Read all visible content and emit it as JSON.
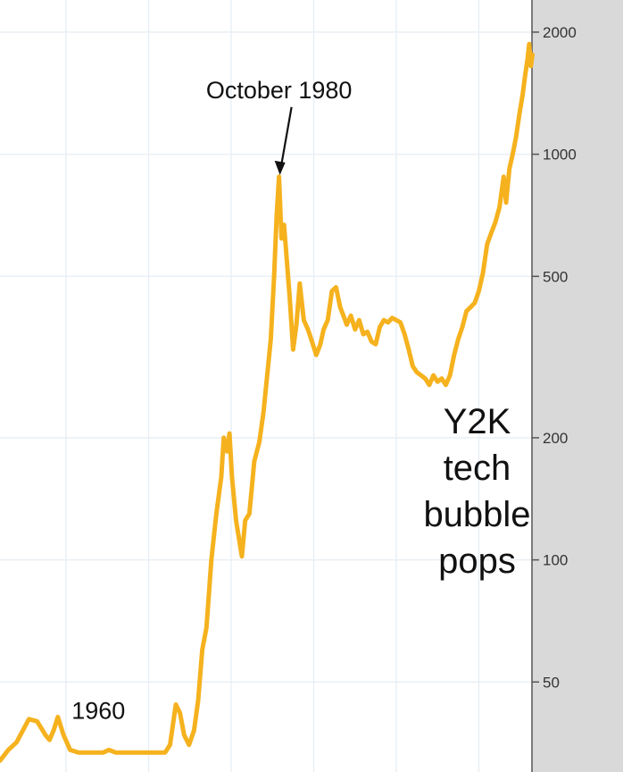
{
  "chart_data": {
    "type": "line",
    "title": "",
    "xlabel": "",
    "ylabel": "",
    "y_scale": "log",
    "ylim": [
      30,
      2400
    ],
    "xlim": [
      1947,
      2011
    ],
    "grid": true,
    "yticks": [
      {
        "value": 50,
        "label": "50"
      },
      {
        "value": 100,
        "label": "100"
      },
      {
        "value": 200,
        "label": "200"
      },
      {
        "value": 500,
        "label": "500"
      },
      {
        "value": 1000,
        "label": "1000"
      },
      {
        "value": 2000,
        "label": "2000"
      }
    ],
    "colors": {
      "line": "#f5b21e",
      "grid": "#e6eef4",
      "panel": "#d9d9d9",
      "axis": "#555555"
    },
    "annotations": [
      {
        "id": "oct1980",
        "text": "October 1980",
        "x": 1980.8,
        "y": 880,
        "style": "arrow"
      },
      {
        "id": "y1960",
        "text": "1960",
        "x": 1960,
        "y": 44,
        "style": "label"
      },
      {
        "id": "y2k",
        "text": [
          "Y2K",
          "tech",
          "bubble",
          "pops"
        ],
        "x": 2001,
        "y": 200,
        "style": "big"
      }
    ],
    "series": [
      {
        "color": "#f5b21e",
        "points": [
          [
            1947.0,
            32
          ],
          [
            1948.0,
            34
          ],
          [
            1949.0,
            35.5
          ],
          [
            1950.5,
            40.5
          ],
          [
            1951.5,
            40
          ],
          [
            1952.5,
            37
          ],
          [
            1953.0,
            36
          ],
          [
            1953.5,
            38
          ],
          [
            1954.0,
            41
          ],
          [
            1954.7,
            37
          ],
          [
            1955.5,
            34
          ],
          [
            1956.5,
            33.5
          ],
          [
            1958.0,
            33.5
          ],
          [
            1959.5,
            33.5
          ],
          [
            1960.2,
            34
          ],
          [
            1961.0,
            33.5
          ],
          [
            1963.0,
            33.5
          ],
          [
            1965.5,
            33.5
          ],
          [
            1967.0,
            33.5
          ],
          [
            1967.6,
            35
          ],
          [
            1968.3,
            44
          ],
          [
            1968.8,
            42
          ],
          [
            1969.3,
            37
          ],
          [
            1969.9,
            35
          ],
          [
            1970.5,
            38
          ],
          [
            1971.0,
            45
          ],
          [
            1971.5,
            60
          ],
          [
            1972.0,
            68
          ],
          [
            1972.6,
            100
          ],
          [
            1973.2,
            130
          ],
          [
            1973.8,
            160
          ],
          [
            1974.1,
            200
          ],
          [
            1974.5,
            185
          ],
          [
            1974.8,
            205
          ],
          [
            1975.1,
            160
          ],
          [
            1975.6,
            125
          ],
          [
            1976.3,
            102
          ],
          [
            1976.7,
            125
          ],
          [
            1977.2,
            130
          ],
          [
            1977.8,
            175
          ],
          [
            1978.4,
            195
          ],
          [
            1978.9,
            230
          ],
          [
            1979.4,
            290
          ],
          [
            1979.8,
            350
          ],
          [
            1980.2,
            500
          ],
          [
            1980.5,
            700
          ],
          [
            1980.8,
            880
          ],
          [
            1981.1,
            620
          ],
          [
            1981.4,
            670
          ],
          [
            1981.7,
            560
          ],
          [
            1982.1,
            440
          ],
          [
            1982.5,
            330
          ],
          [
            1982.9,
            380
          ],
          [
            1983.3,
            480
          ],
          [
            1983.8,
            390
          ],
          [
            1984.3,
            370
          ],
          [
            1984.8,
            345
          ],
          [
            1985.3,
            320
          ],
          [
            1985.8,
            340
          ],
          [
            1986.2,
            370
          ],
          [
            1986.7,
            390
          ],
          [
            1987.2,
            460
          ],
          [
            1987.7,
            470
          ],
          [
            1988.2,
            420
          ],
          [
            1988.6,
            400
          ],
          [
            1989.0,
            380
          ],
          [
            1989.5,
            400
          ],
          [
            1990.0,
            370
          ],
          [
            1990.5,
            390
          ],
          [
            1991.0,
            360
          ],
          [
            1991.5,
            365
          ],
          [
            1992.0,
            345
          ],
          [
            1992.5,
            340
          ],
          [
            1993.0,
            375
          ],
          [
            1993.5,
            390
          ],
          [
            1994.0,
            385
          ],
          [
            1994.5,
            395
          ],
          [
            1995.0,
            390
          ],
          [
            1995.5,
            385
          ],
          [
            1996.0,
            360
          ],
          [
            1996.5,
            330
          ],
          [
            1997.0,
            300
          ],
          [
            1997.5,
            290
          ],
          [
            1998.0,
            285
          ],
          [
            1998.5,
            280
          ],
          [
            1999.0,
            270
          ],
          [
            1999.5,
            285
          ],
          [
            2000.0,
            275
          ],
          [
            2000.5,
            280
          ],
          [
            2001.0,
            270
          ],
          [
            2001.5,
            285
          ],
          [
            2002.0,
            320
          ],
          [
            2002.5,
            350
          ],
          [
            2003.0,
            375
          ],
          [
            2003.5,
            410
          ],
          [
            2004.0,
            420
          ],
          [
            2004.5,
            430
          ],
          [
            2005.0,
            460
          ],
          [
            2005.5,
            510
          ],
          [
            2006.0,
            600
          ],
          [
            2006.5,
            640
          ],
          [
            2007.0,
            680
          ],
          [
            2007.5,
            740
          ],
          [
            2008.0,
            880
          ],
          [
            2008.3,
            760
          ],
          [
            2008.7,
            920
          ],
          [
            2009.1,
            1000
          ],
          [
            2009.5,
            1100
          ],
          [
            2009.9,
            1250
          ],
          [
            2010.3,
            1400
          ],
          [
            2010.6,
            1560
          ],
          [
            2010.9,
            1720
          ],
          [
            2011.1,
            1870
          ],
          [
            2011.3,
            1650
          ],
          [
            2011.5,
            1760
          ]
        ]
      }
    ]
  }
}
